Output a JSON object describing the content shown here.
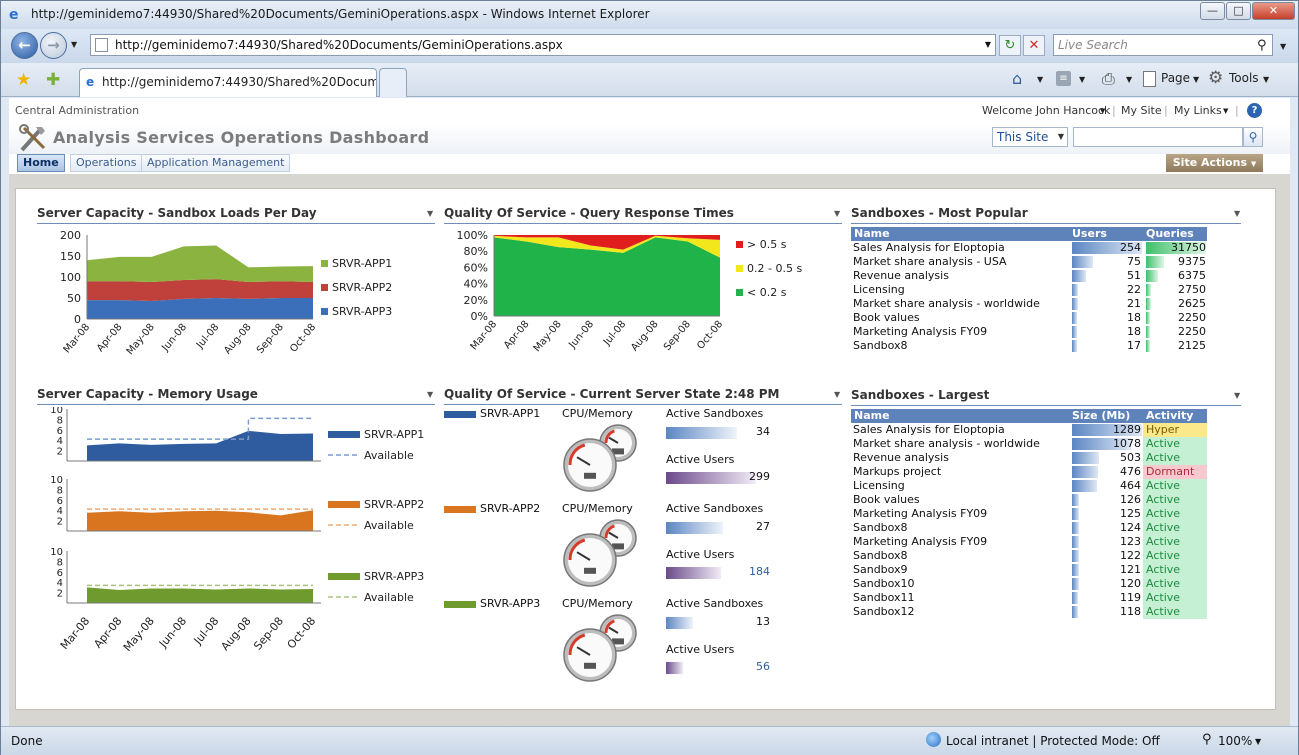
{
  "window": {
    "title": "http://geminidemo7:44930/Shared%20Documents/GeminiOperations.aspx - Windows Internet Explorer"
  },
  "address": {
    "url": "http://geminidemo7:44930/Shared%20Documents/GeminiOperations.aspx",
    "search_placeholder": "Live Search"
  },
  "tabs": {
    "active_tab": "http://geminidemo7:44930/Shared%20Documen...",
    "page_label": "Page",
    "tools_label": "Tools"
  },
  "sp": {
    "central_admin": "Central Administration",
    "welcome": "Welcome John Hancock",
    "my_site": "My Site",
    "my_links": "My Links",
    "page_title": "Analysis Services Operations Dashboard",
    "scope": "This Site",
    "nav": [
      "Home",
      "Operations",
      "Application Management"
    ],
    "site_actions": "Site Actions"
  },
  "w1": {
    "title": "Server Capacity - Sandbox Loads Per Day"
  },
  "w2": {
    "title": "Quality Of Service - Query Response Times"
  },
  "w3": {
    "title": "Sandboxes - Most Popular",
    "headers": [
      "Name",
      "Users",
      "Queries"
    ]
  },
  "w4": {
    "title": "Server Capacity - Memory Usage",
    "available": "Available"
  },
  "w5": {
    "title": "Quality Of Service - Current Server State 2:48 PM",
    "cpu": "CPU/Memory",
    "active_sandboxes": "Active Sandboxes",
    "active_users": "Active Users"
  },
  "w6": {
    "title": "Sandboxes - Largest",
    "headers": [
      "Name",
      "Size (Mb)",
      "Activity"
    ]
  },
  "popular": [
    {
      "name": "Sales Analysis for Eloptopia",
      "users": 254,
      "queries": 31750
    },
    {
      "name": "Market share analysis - USA",
      "users": 75,
      "queries": 9375
    },
    {
      "name": "Revenue analysis",
      "users": 51,
      "queries": 6375
    },
    {
      "name": "Licensing",
      "users": 22,
      "queries": 2750
    },
    {
      "name": "Market share analysis - worldwide",
      "users": 21,
      "queries": 2625
    },
    {
      "name": "Book values",
      "users": 18,
      "queries": 2250
    },
    {
      "name": "Marketing Analysis FY09",
      "users": 18,
      "queries": 2250
    },
    {
      "name": "Sandbox8",
      "users": 17,
      "queries": 2125
    }
  ],
  "largest": [
    {
      "name": "Sales Analysis for Eloptopia",
      "size": 1289,
      "activity": "Hyper"
    },
    {
      "name": "Market share analysis - worldwide",
      "size": 1078,
      "activity": "Active"
    },
    {
      "name": "Revenue analysis",
      "size": 503,
      "activity": "Active"
    },
    {
      "name": "Markups project",
      "size": 476,
      "activity": "Dormant"
    },
    {
      "name": "Licensing",
      "size": 464,
      "activity": "Active"
    },
    {
      "name": "Book values",
      "size": 126,
      "activity": "Active"
    },
    {
      "name": "Marketing Analysis FY09",
      "size": 125,
      "activity": "Active"
    },
    {
      "name": "Sandbox8",
      "size": 124,
      "activity": "Active"
    },
    {
      "name": "Marketing Analysis FY09",
      "size": 123,
      "activity": "Active"
    },
    {
      "name": "Sandbox8",
      "size": 122,
      "activity": "Active"
    },
    {
      "name": "Sandbox9",
      "size": 121,
      "activity": "Active"
    },
    {
      "name": "Sandbox10",
      "size": 120,
      "activity": "Active"
    },
    {
      "name": "Sandbox11",
      "size": 119,
      "activity": "Active"
    },
    {
      "name": "Sandbox12",
      "size": 118,
      "activity": "Active"
    }
  ],
  "servers": [
    {
      "name": "SRVR-APP1",
      "color": "#2e5c9e",
      "active_sandboxes": 34,
      "active_users": 299
    },
    {
      "name": "SRVR-APP2",
      "color": "#d9751e",
      "active_sandboxes": 27,
      "active_users": 184
    },
    {
      "name": "SRVR-APP3",
      "color": "#6f9a2e",
      "active_sandboxes": 13,
      "active_users": 56
    }
  ],
  "chart_data": [
    {
      "type": "area",
      "title": "Server Capacity - Sandbox Loads Per Day",
      "categories": [
        "Mar-08",
        "Apr-08",
        "May-08",
        "Jun-08",
        "Jul-08",
        "Aug-08",
        "Sep-08",
        "Oct-08"
      ],
      "yticks": [
        "0",
        "50",
        "100",
        "150",
        "200"
      ],
      "ylim": [
        0,
        200
      ],
      "series": [
        {
          "name": "SRVR-APP3",
          "values": [
            45,
            45,
            43,
            48,
            50,
            48,
            50,
            50
          ],
          "color": "#3b6fba"
        },
        {
          "name": "SRVR-APP2",
          "values": [
            45,
            45,
            45,
            45,
            45,
            40,
            40,
            38
          ],
          "color": "#c0413b"
        },
        {
          "name": "SRVR-APP1",
          "values": [
            50,
            58,
            60,
            80,
            80,
            35,
            35,
            38
          ],
          "color": "#8ab33f"
        }
      ]
    },
    {
      "type": "area",
      "title": "Quality Of Service - Query Response Times",
      "categories": [
        "Mar-08",
        "Apr-08",
        "May-08",
        "Jun-08",
        "Jul-08",
        "Aug-08",
        "Sep-08",
        "Oct-08"
      ],
      "yticks": [
        "0%",
        "20%",
        "40%",
        "60%",
        "80%",
        "100%"
      ],
      "ylim": [
        0,
        100
      ],
      "series": [
        {
          "name": "< 0.2 s",
          "values": [
            97,
            92,
            85,
            82,
            78,
            97,
            92,
            72
          ],
          "color": "#1fb34a"
        },
        {
          "name": "0.2 - 0.5 s",
          "values": [
            2,
            5,
            12,
            5,
            4,
            2,
            4,
            22
          ],
          "color": "#f2e71d"
        },
        {
          "name": "> 0.5 s",
          "values": [
            1,
            3,
            3,
            13,
            18,
            1,
            4,
            6
          ],
          "color": "#e01e1e"
        }
      ]
    },
    {
      "type": "area",
      "title": "Server Capacity - Memory Usage",
      "categories": [
        "Mar-08",
        "Apr-08",
        "May-08",
        "Jun-08",
        "Jul-08",
        "Aug-08",
        "Sep-08",
        "Oct-08"
      ],
      "yticks": [
        "2",
        "4",
        "6",
        "8",
        "10"
      ],
      "ylim": [
        0,
        10
      ],
      "series": [
        {
          "name": "SRVR-APP1",
          "values": [
            3,
            3.4,
            3.1,
            3.3,
            3.4,
            5.8,
            5.2,
            5.3
          ],
          "available": [
            4.2,
            4.2,
            4.2,
            4.2,
            4.2,
            8.2,
            8.2,
            8.2
          ],
          "color": "#2e5c9e"
        },
        {
          "name": "SRVR-APP2",
          "values": [
            3.5,
            3.8,
            3.5,
            3.8,
            3.9,
            3.6,
            3,
            4
          ],
          "available": [
            4.2,
            4.2,
            4.2,
            4.2,
            4.2,
            4.2,
            4.2,
            4.2
          ],
          "color": "#d9751e"
        },
        {
          "name": "SRVR-APP3",
          "values": [
            3,
            2.5,
            2.8,
            2.8,
            2.6,
            2.8,
            2.6,
            2.7
          ],
          "available": [
            3.4,
            3.4,
            3.4,
            3.4,
            3.4,
            3.4,
            3.4,
            3.4
          ],
          "color": "#6f9a2e"
        }
      ]
    }
  ],
  "statusbar": {
    "left": "Done",
    "zone": "Local intranet | Protected Mode: Off",
    "zoom": "100%"
  }
}
